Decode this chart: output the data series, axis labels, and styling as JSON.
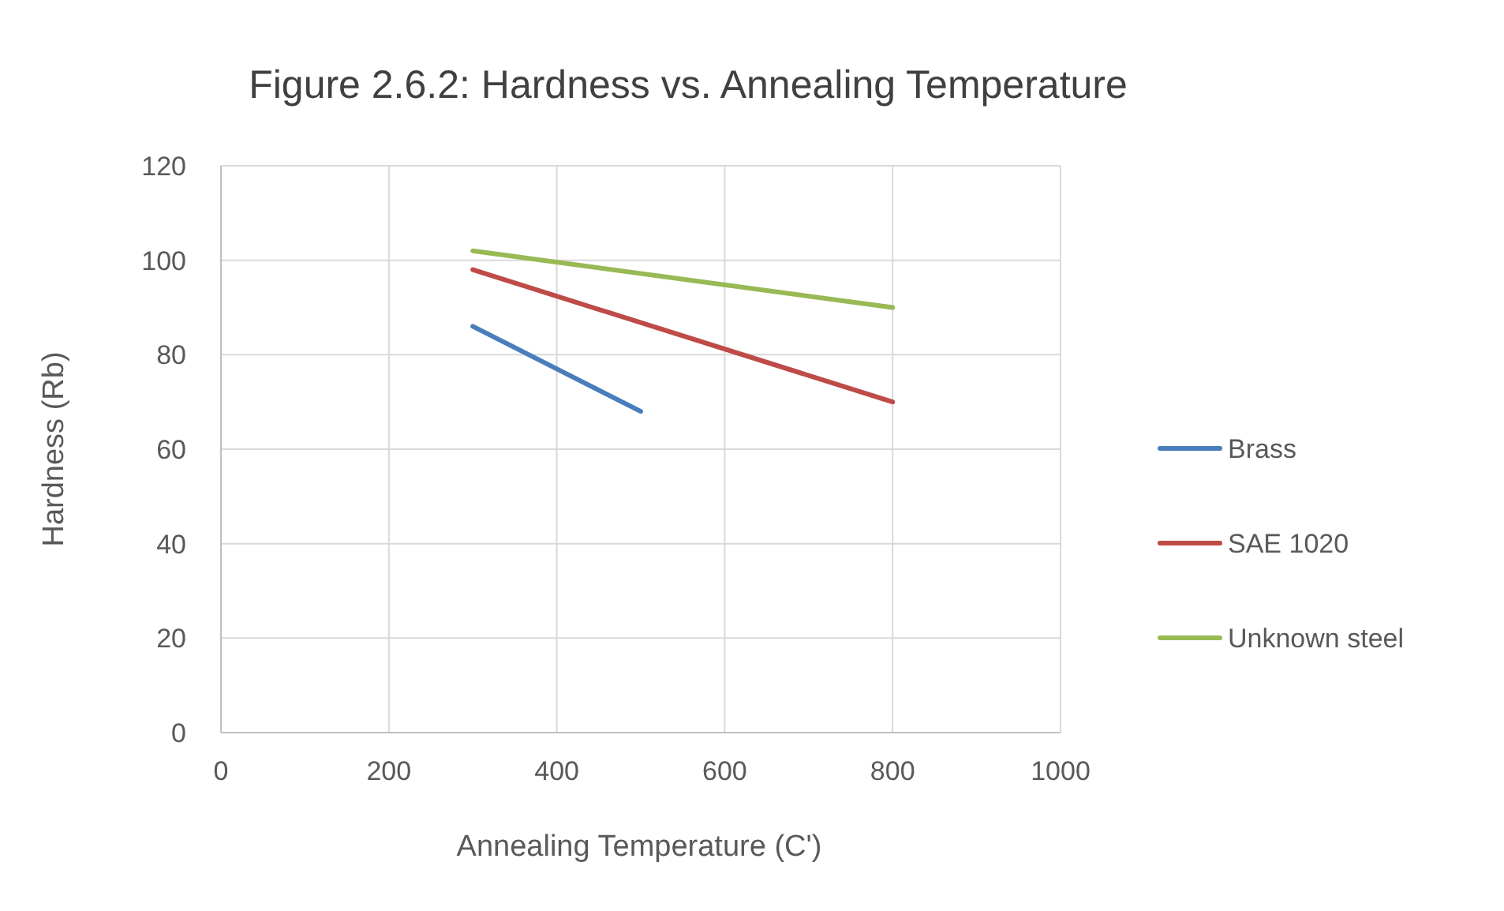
{
  "chart_data": {
    "type": "line",
    "title": "Figure 2.6.2: Hardness vs. Annealing Temperature",
    "xlabel": "Annealing Temperature (C')",
    "ylabel": "Hardness (Rb)",
    "xlim": [
      0,
      1000
    ],
    "xticks": [
      0,
      200,
      400,
      600,
      800,
      1000
    ],
    "ylim": [
      0,
      120
    ],
    "yticks": [
      0,
      20,
      40,
      60,
      80,
      100,
      120
    ],
    "grid": true,
    "legend": "right",
    "marker": "none",
    "line_style": "solid",
    "series": [
      {
        "name": "Brass",
        "color": "#4a7ebb",
        "x": [
          300,
          500
        ],
        "values": [
          86,
          68
        ]
      },
      {
        "name": "SAE 1020",
        "color": "#be4b48",
        "x": [
          300,
          800
        ],
        "values": [
          98,
          70
        ]
      },
      {
        "name": "Unknown steel",
        "color": "#98b954",
        "x": [
          300,
          800
        ],
        "values": [
          102,
          90
        ]
      }
    ]
  }
}
